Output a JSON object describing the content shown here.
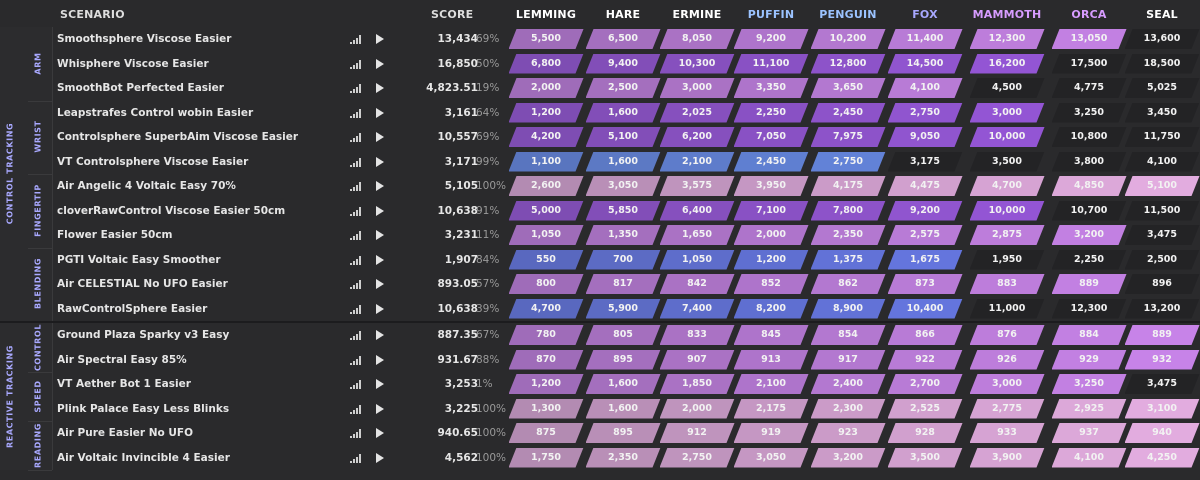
{
  "header": {
    "scenario_label": "SCENARIO",
    "score_label": "SCORE",
    "ranks": [
      {
        "name": "LEMMING",
        "color": "#ffffff"
      },
      {
        "name": "HARE",
        "color": "#ffffff"
      },
      {
        "name": "ERMINE",
        "color": "#ffffff"
      },
      {
        "name": "PUFFIN",
        "color": "#9bc3ff"
      },
      {
        "name": "PENGUIN",
        "color": "#9bc3ff"
      },
      {
        "name": "FOX",
        "color": "#a8a8ff"
      },
      {
        "name": "MAMMOTH",
        "color": "#d79cff"
      },
      {
        "name": "ORCA",
        "color": "#d79cff"
      },
      {
        "name": "SEAL",
        "color": "#ffffff"
      }
    ]
  },
  "categories": [
    {
      "label": "CONTROL TRACKING"
    },
    {
      "label": "REACTIVE TRACKING"
    }
  ],
  "subcategories": [
    {
      "label": "ARM"
    },
    {
      "label": "WRIST"
    },
    {
      "label": "FINGERTIP"
    },
    {
      "label": "BLENDING"
    },
    {
      "label": "CONTROL"
    },
    {
      "label": "SPEED"
    },
    {
      "label": "READING"
    }
  ],
  "theme": {
    "purple": "#9b59e0",
    "lilac": "#c783e8",
    "pink": "#e2acdf",
    "blue": "#6a7df0",
    "bar_track": "#232325"
  },
  "rows": [
    {
      "name": "Smoothsphere Viscose Easier",
      "score": "13,434",
      "pct": "69%",
      "color": "#c783e8",
      "fill": 0.9,
      "thresholds": [
        "5,500",
        "6,500",
        "8,050",
        "9,200",
        "10,200",
        "11,400",
        "12,300",
        "13,050",
        "13,600"
      ]
    },
    {
      "name": "Whisphere Viscose Easier",
      "score": "16,850",
      "pct": "50%",
      "color": "#9b59e0",
      "fill": 0.8,
      "thresholds": [
        "6,800",
        "9,400",
        "10,300",
        "11,100",
        "12,800",
        "14,500",
        "16,200",
        "17,500",
        "18,500"
      ]
    },
    {
      "name": "SmoothBot Perfected Easier",
      "score": "4,823.51",
      "pct": "19%",
      "color": "#c783e8",
      "fill": 0.7,
      "thresholds": [
        "2,000",
        "2,500",
        "3,000",
        "3,350",
        "3,650",
        "4,100",
        "4,500",
        "4,775",
        "5,025"
      ]
    },
    {
      "name": "Leapstrafes Control wobin Easier",
      "score": "3,161",
      "pct": "64%",
      "color": "#9b59e0",
      "fill": 0.8,
      "thresholds": [
        "1,200",
        "1,600",
        "2,025",
        "2,250",
        "2,450",
        "2,750",
        "3,000",
        "3,250",
        "3,450"
      ]
    },
    {
      "name": "Controlsphere SuperbAim Viscose Easier",
      "score": "10,557",
      "pct": "69%",
      "color": "#9b59e0",
      "fill": 0.8,
      "thresholds": [
        "4,200",
        "5,100",
        "6,200",
        "7,050",
        "7,975",
        "9,050",
        "10,000",
        "10,800",
        "11,750"
      ]
    },
    {
      "name": "VT Controlsphere Viscose Easier",
      "score": "3,171",
      "pct": "99%",
      "color": "#6a8ff0",
      "fill": 0.6,
      "thresholds": [
        "1,100",
        "1,600",
        "2,100",
        "2,450",
        "2,750",
        "3,175",
        "3,500",
        "3,800",
        "4,100"
      ]
    },
    {
      "name": "Air Angelic 4 Voltaic Easy 70%",
      "score": "5,105",
      "pct": "100%",
      "color": "#e2acdf",
      "fill": 1.0,
      "thresholds": [
        "2,600",
        "3,050",
        "3,575",
        "3,950",
        "4,175",
        "4,475",
        "4,700",
        "4,850",
        "5,100"
      ]
    },
    {
      "name": "cloverRawControl Viscose Easier 50cm",
      "score": "10,638",
      "pct": "91%",
      "color": "#9b59e0",
      "fill": 0.8,
      "thresholds": [
        "5,000",
        "5,850",
        "6,400",
        "7,100",
        "7,800",
        "9,200",
        "10,000",
        "10,700",
        "11,500"
      ]
    },
    {
      "name": "Flower Easier 50cm",
      "score": "3,231",
      "pct": "11%",
      "color": "#c783e8",
      "fill": 0.9,
      "thresholds": [
        "1,050",
        "1,350",
        "1,650",
        "2,000",
        "2,350",
        "2,575",
        "2,875",
        "3,200",
        "3,475"
      ]
    },
    {
      "name": "PGTI Voltaic Easy Smoother",
      "score": "1,907",
      "pct": "84%",
      "color": "#6a7df0",
      "fill": 0.7,
      "thresholds": [
        "550",
        "700",
        "1,050",
        "1,200",
        "1,375",
        "1,675",
        "1,950",
        "2,250",
        "2,500"
      ]
    },
    {
      "name": "Air CELESTIAL No UFO Easier",
      "score": "893.05",
      "pct": "57%",
      "color": "#c783e8",
      "fill": 0.9,
      "thresholds": [
        "800",
        "817",
        "842",
        "852",
        "862",
        "873",
        "883",
        "889",
        "896"
      ]
    },
    {
      "name": "RawControlSphere Easier",
      "score": "10,638",
      "pct": "39%",
      "color": "#6a7df0",
      "fill": 0.7,
      "thresholds": [
        "4,700",
        "5,900",
        "7,400",
        "8,200",
        "8,900",
        "10,400",
        "11,000",
        "12,300",
        "13,200"
      ]
    },
    {
      "name": "Ground Plaza Sparky v3 Easy",
      "score": "887.35",
      "pct": "67%",
      "color": "#c783e8",
      "fill": 1.0,
      "thresholds": [
        "780",
        "805",
        "833",
        "845",
        "854",
        "866",
        "876",
        "884",
        "889"
      ]
    },
    {
      "name": "Air Spectral Easy 85%",
      "score": "931.67",
      "pct": "88%",
      "color": "#c783e8",
      "fill": 1.0,
      "thresholds": [
        "870",
        "895",
        "907",
        "913",
        "917",
        "922",
        "926",
        "929",
        "932"
      ]
    },
    {
      "name": "VT Aether Bot 1 Easier",
      "score": "3,253",
      "pct": "1%",
      "color": "#c783e8",
      "fill": 0.9,
      "thresholds": [
        "1,200",
        "1,600",
        "1,850",
        "2,100",
        "2,400",
        "2,700",
        "3,000",
        "3,250",
        "3,475"
      ]
    },
    {
      "name": "Plink Palace Easy Less Blinks",
      "score": "3,225",
      "pct": "100%",
      "color": "#e2acdf",
      "fill": 1.0,
      "thresholds": [
        "1,300",
        "1,600",
        "2,000",
        "2,175",
        "2,300",
        "2,525",
        "2,775",
        "2,925",
        "3,100"
      ]
    },
    {
      "name": "Air Pure Easier No UFO",
      "score": "940.65",
      "pct": "100%",
      "color": "#e2acdf",
      "fill": 1.0,
      "thresholds": [
        "875",
        "895",
        "912",
        "919",
        "923",
        "928",
        "933",
        "937",
        "940"
      ]
    },
    {
      "name": "Air Voltaic Invincible 4 Easier",
      "score": "4,562",
      "pct": "100%",
      "color": "#e2acdf",
      "fill": 1.0,
      "thresholds": [
        "1,750",
        "2,350",
        "2,750",
        "3,050",
        "3,200",
        "3,500",
        "3,900",
        "4,100",
        "4,250"
      ]
    }
  ]
}
